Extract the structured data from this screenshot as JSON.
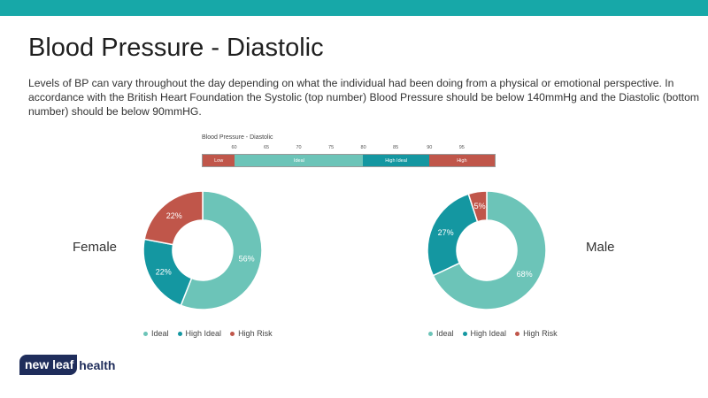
{
  "slide": {
    "title": "Blood Pressure - Diastolic",
    "intro": "Levels of BP can vary throughout the day depending on what the individual had been doing from a physical or emotional perspective. In accordance with the British Heart Foundation the Systolic (top number) Blood Pressure should be below 140mmHg and the Diastolic (bottom number) should be below 90mmHG."
  },
  "scale": {
    "title": "Blood Pressure - Diastolic",
    "ticks": [
      "60",
      "65",
      "70",
      "75",
      "80",
      "85",
      "90",
      "95"
    ],
    "segments": [
      "Low",
      "Ideal",
      "High Ideal",
      "High"
    ]
  },
  "colors": {
    "ideal": "#6cc4b8",
    "high_ideal": "#1497a1",
    "high_risk": "#c0564a",
    "top_bar": "#17a8a8",
    "logo_navy": "#1f2d5b"
  },
  "chart_data": [
    {
      "type": "pie",
      "label": "Female",
      "categories": [
        "Ideal",
        "High Ideal",
        "High Risk"
      ],
      "values": [
        56,
        22,
        22
      ],
      "value_labels": [
        "56%",
        "22%",
        "22%"
      ]
    },
    {
      "type": "pie",
      "label": "Male",
      "categories": [
        "Ideal",
        "High Ideal",
        "High Risk"
      ],
      "values": [
        68,
        27,
        5
      ],
      "value_labels": [
        "68%",
        "27%",
        "5%"
      ]
    }
  ],
  "legend": [
    "Ideal",
    "High Ideal",
    "High Risk"
  ],
  "logo": {
    "part1": "new leaf",
    "part2": "health"
  }
}
